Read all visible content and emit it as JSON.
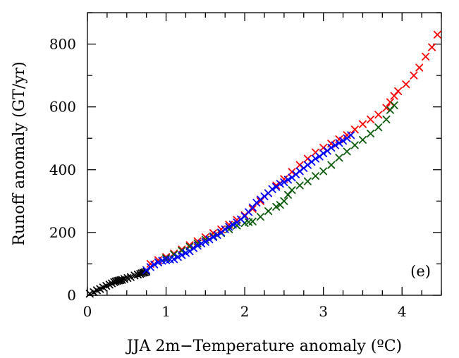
{
  "chart_data": {
    "type": "scatter",
    "xlabel": "JJA 2m−Temperature anomaly (ºC)",
    "ylabel": "Runoff anomaly (GT/yr)",
    "panel_label": "(e)",
    "xlim": [
      0,
      4.5
    ],
    "ylim": [
      0,
      900
    ],
    "xticks": [
      0,
      1,
      2,
      3,
      4
    ],
    "xtick_labels": [
      "0",
      "1",
      "2",
      "3",
      "4"
    ],
    "yticks": [
      0,
      200,
      400,
      600,
      800
    ],
    "ytick_labels": [
      "0",
      "200",
      "400",
      "600",
      "800"
    ],
    "x_minor_step": 0.25,
    "y_minor_step": 100,
    "grid": false,
    "legend": "none",
    "marker": "cross",
    "series": [
      {
        "color": "#000000",
        "x": [
          0.03,
          0.08,
          0.12,
          0.16,
          0.2,
          0.24,
          0.28,
          0.31,
          0.34,
          0.36,
          0.38,
          0.4,
          0.42,
          0.44,
          0.47,
          0.51,
          0.55,
          0.6,
          0.64,
          0.67,
          0.69,
          0.71,
          0.73,
          0.75
        ],
        "y": [
          5,
          10,
          16,
          20,
          25,
          30,
          34,
          38,
          42,
          44,
          46,
          47,
          48,
          49,
          52,
          55,
          58,
          63,
          66,
          68,
          70,
          72,
          73,
          75
        ]
      },
      {
        "color": "#ff0000",
        "x": [
          0.8,
          0.9,
          1.0,
          1.1,
          1.2,
          1.3,
          1.4,
          1.5,
          1.6,
          1.7,
          1.8,
          1.9,
          2.0,
          2.1,
          2.2,
          2.3,
          2.4,
          2.5,
          2.6,
          2.7,
          2.8,
          2.9,
          3.0,
          3.1,
          3.2,
          3.3,
          3.4,
          3.5,
          3.6,
          3.7,
          3.8,
          3.85,
          3.9,
          3.95,
          4.05,
          4.15,
          4.22,
          4.3,
          4.38,
          4.45
        ],
        "y": [
          100,
          112,
          122,
          133,
          146,
          160,
          172,
          185,
          198,
          210,
          225,
          240,
          255,
          275,
          300,
          325,
          350,
          370,
          393,
          415,
          435,
          455,
          470,
          483,
          497,
          510,
          528,
          545,
          560,
          575,
          597,
          615,
          635,
          650,
          672,
          700,
          725,
          760,
          790,
          830
        ]
      },
      {
        "color": "#0a5c0a",
        "x": [
          0.9,
          1.0,
          1.1,
          1.2,
          1.3,
          1.4,
          1.5,
          1.6,
          1.7,
          1.8,
          1.9,
          2.0,
          2.05,
          2.1,
          2.2,
          2.3,
          2.4,
          2.45,
          2.5,
          2.55,
          2.6,
          2.7,
          2.8,
          2.9,
          3.0,
          3.1,
          3.2,
          3.3,
          3.4,
          3.5,
          3.6,
          3.7,
          3.8,
          3.85,
          3.9
        ],
        "y": [
          105,
          118,
          130,
          142,
          155,
          165,
          177,
          188,
          198,
          210,
          222,
          230,
          233,
          235,
          250,
          268,
          282,
          288,
          300,
          320,
          335,
          350,
          363,
          380,
          395,
          415,
          438,
          458,
          478,
          495,
          515,
          535,
          560,
          590,
          605
        ]
      },
      {
        "color": "#0000ff",
        "x": [
          0.75,
          0.8,
          0.85,
          0.9,
          0.95,
          1.0,
          1.05,
          1.1,
          1.15,
          1.2,
          1.25,
          1.3,
          1.35,
          1.4,
          1.45,
          1.5,
          1.55,
          1.6,
          1.65,
          1.7,
          1.75,
          1.8,
          1.85,
          1.9,
          1.95,
          2.0,
          2.05,
          2.1,
          2.15,
          2.2,
          2.25,
          2.3,
          2.35,
          2.4,
          2.45,
          2.5,
          2.55,
          2.6,
          2.65,
          2.7,
          2.75,
          2.8,
          2.85,
          2.9,
          2.95,
          3.0,
          3.05,
          3.1,
          3.15,
          3.2,
          3.25,
          3.3,
          3.35
        ],
        "y": [
          80,
          90,
          98,
          105,
          110,
          112,
          114,
          115,
          122,
          128,
          135,
          140,
          150,
          158,
          165,
          170,
          178,
          185,
          192,
          200,
          210,
          218,
          225,
          232,
          242,
          252,
          265,
          280,
          295,
          305,
          315,
          325,
          338,
          345,
          355,
          360,
          368,
          375,
          385,
          395,
          405,
          415,
          425,
          435,
          442,
          452,
          460,
          470,
          478,
          485,
          492,
          500,
          510
        ]
      }
    ]
  }
}
